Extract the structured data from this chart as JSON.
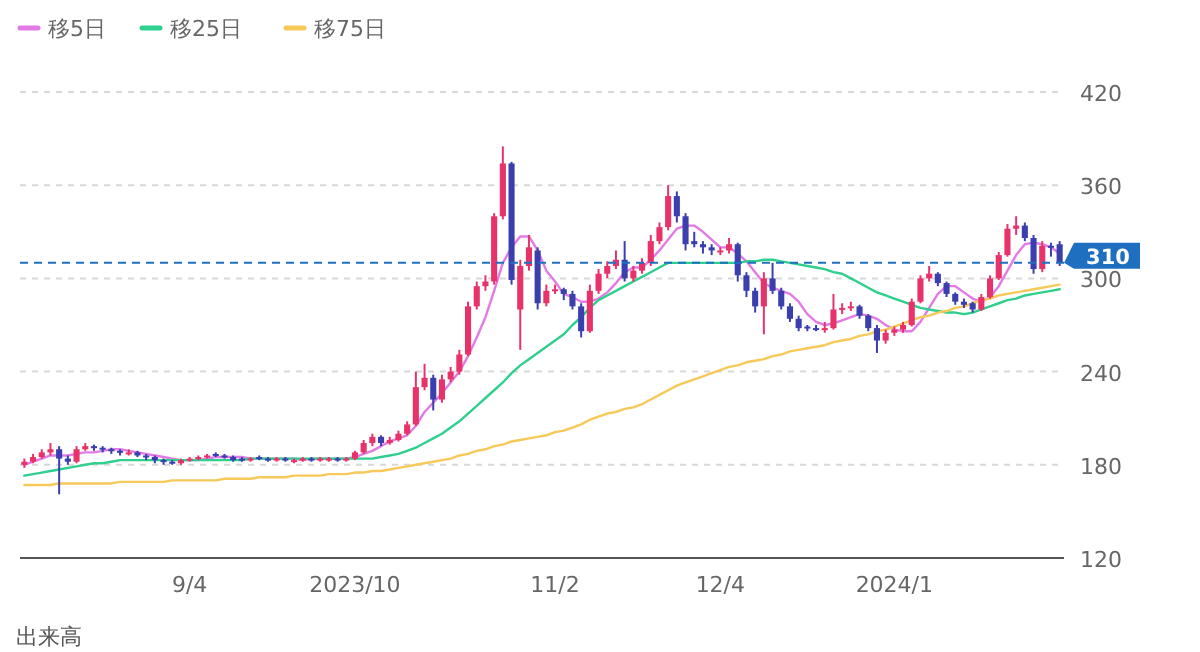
{
  "chart_data": {
    "type": "candlestick",
    "categories": [
      null,
      null,
      null,
      null,
      null,
      null,
      null,
      null,
      null,
      null,
      null,
      null,
      null,
      null,
      null,
      null,
      null,
      null,
      null,
      "9/4",
      null,
      null,
      null,
      null,
      null,
      null,
      null,
      null,
      null,
      null,
      null,
      null,
      null,
      null,
      null,
      null,
      null,
      null,
      "2023/10",
      null,
      null,
      null,
      null,
      null,
      null,
      null,
      null,
      null,
      null,
      null,
      null,
      null,
      null,
      null,
      null,
      null,
      null,
      null,
      null,
      null,
      null,
      "11/2",
      null,
      null,
      null,
      null,
      null,
      null,
      null,
      null,
      null,
      null,
      null,
      null,
      null,
      null,
      null,
      null,
      null,
      null,
      "12/4",
      null,
      null,
      null,
      null,
      null,
      null,
      null,
      null,
      null,
      null,
      null,
      null,
      null,
      null,
      null,
      null,
      null,
      null,
      null,
      "2024/1",
      null,
      null,
      null,
      null,
      null,
      null,
      null,
      null,
      null,
      null,
      null,
      null,
      null,
      null,
      null,
      null,
      null,
      null,
      null
    ],
    "ohlc": [
      [
        180,
        184,
        178,
        182
      ],
      [
        182,
        187,
        181,
        185
      ],
      [
        185,
        190,
        184,
        188
      ],
      [
        188,
        194,
        186,
        190
      ],
      [
        190,
        192,
        161,
        184
      ],
      [
        184,
        186,
        180,
        182
      ],
      [
        182,
        192,
        181,
        190
      ],
      [
        190,
        194,
        189,
        192
      ],
      [
        192,
        193,
        189,
        191
      ],
      [
        191,
        192,
        188,
        190
      ],
      [
        190,
        191,
        187,
        189
      ],
      [
        189,
        190,
        186,
        188
      ],
      [
        187,
        190,
        186,
        188
      ],
      [
        188,
        189,
        185,
        186
      ],
      [
        186,
        187,
        183,
        185
      ],
      [
        185,
        186,
        181,
        183
      ],
      [
        183,
        184,
        180,
        182
      ],
      [
        182,
        183,
        180,
        181
      ],
      [
        181,
        184,
        180,
        183
      ],
      [
        183,
        185,
        182,
        184
      ],
      [
        184,
        186,
        183,
        185
      ],
      [
        185,
        187,
        184,
        186
      ],
      [
        187,
        188,
        185,
        186
      ],
      [
        186,
        187,
        184,
        185
      ],
      [
        185,
        186,
        182,
        183
      ],
      [
        184,
        185,
        182,
        183
      ],
      [
        183,
        185,
        182,
        184
      ],
      [
        185,
        186,
        183,
        184
      ],
      [
        184,
        185,
        182,
        183
      ],
      [
        183,
        185,
        182,
        184
      ],
      [
        184,
        185,
        182,
        183
      ],
      [
        182,
        184,
        181,
        183
      ],
      [
        183,
        185,
        182,
        184
      ],
      [
        184,
        185,
        182,
        183
      ],
      [
        183,
        185,
        182,
        184
      ],
      [
        183,
        185,
        182,
        184
      ],
      [
        184,
        185,
        182,
        183
      ],
      [
        183,
        185,
        182,
        184
      ],
      [
        184,
        189,
        183,
        188
      ],
      [
        188,
        196,
        187,
        194
      ],
      [
        194,
        200,
        192,
        198
      ],
      [
        198,
        199,
        192,
        194
      ],
      [
        194,
        198,
        193,
        196
      ],
      [
        196,
        202,
        195,
        200
      ],
      [
        200,
        208,
        199,
        206
      ],
      [
        206,
        240,
        205,
        230
      ],
      [
        230,
        245,
        228,
        236
      ],
      [
        236,
        238,
        215,
        222
      ],
      [
        222,
        238,
        220,
        235
      ],
      [
        235,
        243,
        233,
        240
      ],
      [
        240,
        254,
        238,
        251
      ],
      [
        251,
        285,
        250,
        282
      ],
      [
        282,
        298,
        280,
        295
      ],
      [
        295,
        302,
        292,
        298
      ],
      [
        298,
        342,
        296,
        340
      ],
      [
        340,
        385,
        338,
        374
      ],
      [
        374,
        375,
        296,
        299
      ],
      [
        280,
        312,
        254,
        308
      ],
      [
        308,
        328,
        305,
        320
      ],
      [
        318,
        320,
        280,
        284
      ],
      [
        284,
        296,
        282,
        292
      ],
      [
        292,
        296,
        290,
        293
      ],
      [
        293,
        294,
        286,
        290
      ],
      [
        290,
        292,
        280,
        282
      ],
      [
        282,
        284,
        262,
        266
      ],
      [
        266,
        296,
        265,
        292
      ],
      [
        292,
        306,
        290,
        303
      ],
      [
        303,
        311,
        300,
        308
      ],
      [
        308,
        318,
        306,
        312
      ],
      [
        312,
        324,
        298,
        300
      ],
      [
        300,
        308,
        298,
        305
      ],
      [
        305,
        313,
        303,
        310
      ],
      [
        310,
        328,
        308,
        324
      ],
      [
        324,
        336,
        322,
        333
      ],
      [
        333,
        360,
        331,
        353
      ],
      [
        353,
        356,
        336,
        340
      ],
      [
        340,
        342,
        318,
        322
      ],
      [
        324,
        330,
        320,
        322
      ],
      [
        322,
        324,
        316,
        320
      ],
      [
        320,
        322,
        315,
        318
      ],
      [
        317,
        320,
        315,
        318
      ],
      [
        318,
        326,
        316,
        322
      ],
      [
        322,
        323,
        298,
        302
      ],
      [
        302,
        304,
        288,
        292
      ],
      [
        292,
        294,
        278,
        282
      ],
      [
        282,
        304,
        264,
        300
      ],
      [
        300,
        310,
        290,
        292
      ],
      [
        292,
        294,
        280,
        282
      ],
      [
        282,
        284,
        272,
        274
      ],
      [
        274,
        276,
        266,
        268
      ],
      [
        269,
        270,
        266,
        268
      ],
      [
        268,
        270,
        266,
        267
      ],
      [
        267,
        272,
        265,
        268
      ],
      [
        268,
        290,
        267,
        280
      ],
      [
        280,
        284,
        277,
        281
      ],
      [
        281,
        285,
        279,
        282
      ],
      [
        282,
        283,
        274,
        276
      ],
      [
        276,
        277,
        266,
        268
      ],
      [
        268,
        270,
        252,
        260
      ],
      [
        260,
        267,
        258,
        265
      ],
      [
        265,
        269,
        263,
        267
      ],
      [
        267,
        272,
        265,
        270
      ],
      [
        270,
        287,
        269,
        285
      ],
      [
        285,
        302,
        284,
        300
      ],
      [
        300,
        308,
        298,
        303
      ],
      [
        303,
        304,
        295,
        297
      ],
      [
        297,
        298,
        288,
        290
      ],
      [
        290,
        291,
        283,
        285
      ],
      [
        285,
        287,
        281,
        283
      ],
      [
        284,
        285,
        278,
        280
      ],
      [
        280,
        290,
        279,
        288
      ],
      [
        288,
        302,
        287,
        300
      ],
      [
        300,
        317,
        299,
        315
      ],
      [
        315,
        335,
        314,
        332
      ],
      [
        332,
        340,
        328,
        334
      ],
      [
        334,
        336,
        324,
        326
      ],
      [
        326,
        328,
        303,
        306
      ],
      [
        306,
        324,
        304,
        321
      ],
      [
        321,
        323,
        314,
        320
      ],
      [
        322,
        324,
        308,
        310
      ]
    ],
    "series": [
      {
        "name": "移5日",
        "type": "line",
        "color": "#e27be6",
        "values": [
          180,
          182,
          184,
          186,
          186,
          186,
          187,
          188,
          188,
          189,
          190,
          190,
          189,
          188,
          187,
          186,
          185,
          184,
          183,
          183,
          183,
          184,
          185,
          185,
          185,
          185,
          184,
          184,
          184,
          184,
          184,
          184,
          183,
          184,
          184,
          184,
          184,
          184,
          185,
          187,
          189,
          192,
          195,
          197,
          199,
          205,
          214,
          220,
          226,
          233,
          240,
          250,
          262,
          275,
          292,
          310,
          320,
          327,
          327,
          318,
          305,
          298,
          290,
          288,
          285,
          285,
          287,
          291,
          297,
          304,
          307,
          307,
          312,
          318,
          325,
          332,
          334,
          334,
          330,
          325,
          320,
          320,
          316,
          311,
          304,
          297,
          294,
          292,
          290,
          285,
          277,
          272,
          270,
          271,
          273,
          275,
          277,
          276,
          274,
          270,
          267,
          266,
          266,
          272,
          281,
          290,
          295,
          295,
          291,
          287,
          285,
          288,
          295,
          305,
          315,
          322,
          323,
          322,
          320,
          316
        ]
      },
      {
        "name": "移25日",
        "type": "line",
        "color": "#2fcf8e",
        "values": [
          173,
          174,
          175,
          176,
          177,
          178,
          179,
          180,
          181,
          181,
          182,
          183,
          183,
          183,
          183,
          183,
          183,
          183,
          183,
          183,
          183,
          183,
          183,
          183,
          183,
          183,
          184,
          184,
          184,
          184,
          184,
          184,
          184,
          184,
          184,
          184,
          184,
          184,
          184,
          184,
          184,
          185,
          186,
          187,
          189,
          191,
          194,
          197,
          200,
          204,
          208,
          213,
          218,
          223,
          228,
          233,
          239,
          244,
          248,
          252,
          256,
          260,
          264,
          270,
          275,
          281,
          286,
          289,
          292,
          295,
          298,
          301,
          304,
          307,
          310,
          310,
          310,
          310,
          310,
          310,
          310,
          310,
          310,
          311,
          311,
          312,
          312,
          311,
          310,
          309,
          308,
          307,
          306,
          304,
          303,
          300,
          297,
          294,
          291,
          289,
          287,
          285,
          283,
          281,
          280,
          279,
          278,
          278,
          277,
          278,
          280,
          282,
          284,
          286,
          287,
          289,
          290,
          291,
          292,
          293
        ]
      },
      {
        "name": "移75日",
        "type": "line",
        "color": "#f6c958",
        "values": [
          167,
          167,
          167,
          167,
          168,
          168,
          168,
          168,
          168,
          168,
          168,
          169,
          169,
          169,
          169,
          169,
          169,
          170,
          170,
          170,
          170,
          170,
          170,
          171,
          171,
          171,
          171,
          172,
          172,
          172,
          172,
          173,
          173,
          173,
          173,
          174,
          174,
          174,
          175,
          175,
          176,
          176,
          177,
          178,
          179,
          180,
          181,
          182,
          183,
          184,
          186,
          187,
          189,
          190,
          192,
          193,
          195,
          196,
          197,
          198,
          199,
          201,
          202,
          204,
          206,
          209,
          211,
          213,
          214,
          216,
          217,
          219,
          222,
          225,
          228,
          231,
          233,
          235,
          237,
          239,
          241,
          243,
          244,
          246,
          247,
          248,
          250,
          251,
          253,
          254,
          255,
          256,
          257,
          259,
          260,
          261,
          263,
          264,
          266,
          267,
          269,
          271,
          273,
          275,
          276,
          278,
          279,
          281,
          282,
          284,
          286,
          287,
          289,
          290,
          291,
          292,
          293,
          294,
          295,
          296
        ]
      }
    ],
    "ylim": [
      120,
      420
    ],
    "yticks": [
      120,
      180,
      240,
      300,
      360,
      420
    ],
    "grid": "y",
    "legend": "top left",
    "ref_lines": [
      {
        "axis": "y",
        "value": 310,
        "label": "310",
        "color": "#1f6fc0",
        "line_style": "dashed"
      }
    ],
    "annotations": [
      "出来高"
    ]
  }
}
